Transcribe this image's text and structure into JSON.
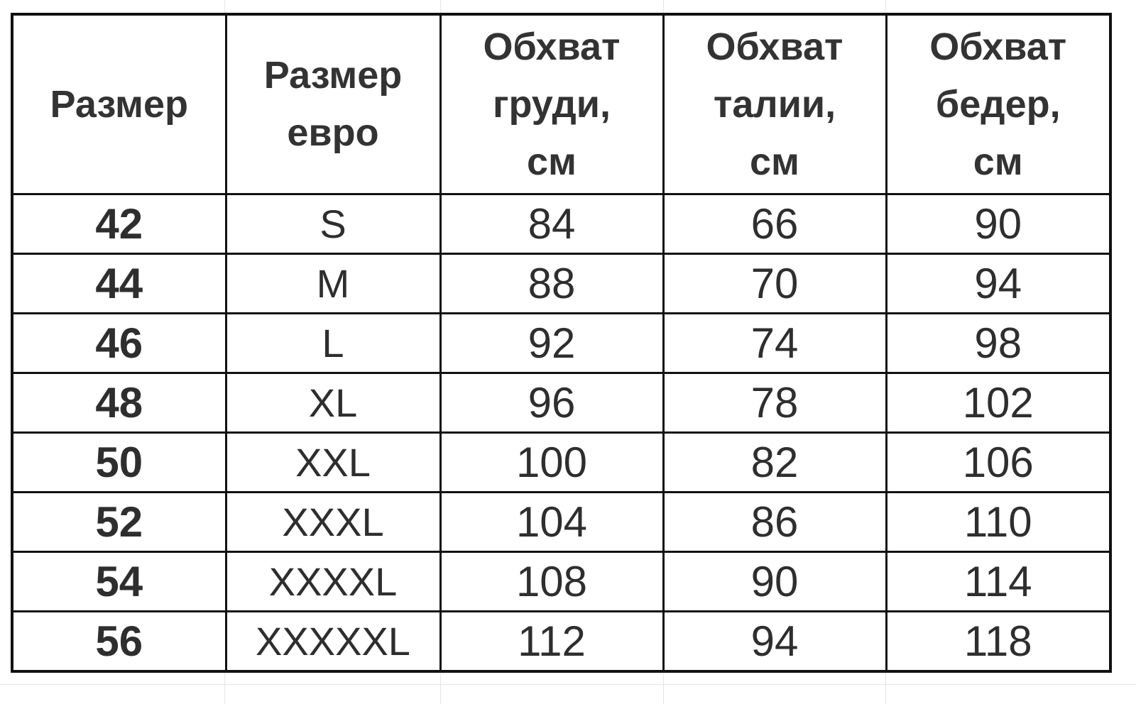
{
  "table": {
    "headers": [
      "Размер",
      "Размер евро",
      "Обхват груди, см",
      "Обхват талии, см",
      "Обхват бедер, см"
    ],
    "header_lines": [
      [
        "Размер"
      ],
      [
        "Размер",
        "евро"
      ],
      [
        "Обхват",
        "груди,",
        "см"
      ],
      [
        "Обхват",
        "талии,",
        "см"
      ],
      [
        "Обхват",
        "бедер,",
        "см"
      ]
    ],
    "rows": [
      [
        "42",
        "S",
        "84",
        "66",
        "90"
      ],
      [
        "44",
        "M",
        "88",
        "70",
        "94"
      ],
      [
        "46",
        "L",
        "92",
        "74",
        "98"
      ],
      [
        "48",
        "XL",
        "96",
        "78",
        "102"
      ],
      [
        "50",
        "XXL",
        "100",
        "82",
        "106"
      ],
      [
        "52",
        "XXXL",
        "104",
        "86",
        "110"
      ],
      [
        "54",
        "XXXXL",
        "108",
        "90",
        "114"
      ],
      [
        "56",
        "XXXXXL",
        "112",
        "94",
        "118"
      ]
    ]
  }
}
